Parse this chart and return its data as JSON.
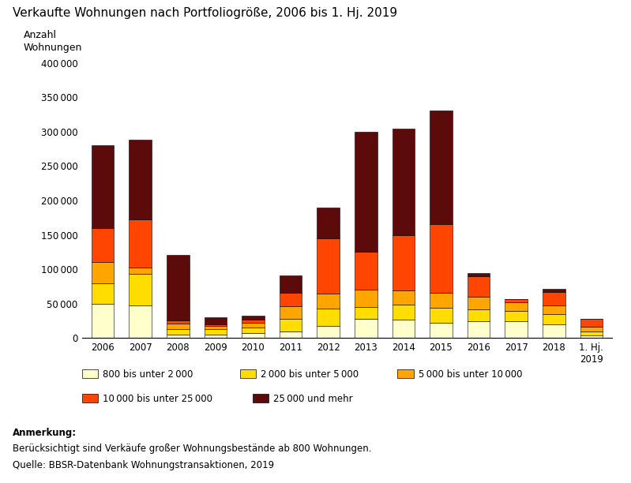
{
  "title": "Verkaufte Wohnungen nach Portfoliogröße, 2006 bis 1. Hj. 2019",
  "ylabel_line1": "Anzahl",
  "ylabel_line2": "Wohnungen",
  "categories": [
    "2006",
    "2007",
    "2008",
    "2009",
    "2010",
    "2011",
    "2012",
    "2013",
    "2014",
    "2015",
    "2016",
    "2017",
    "2018",
    "1. Hj.\n2019"
  ],
  "series_labels": [
    "800 bis unter 2 000",
    "2 000 bis unter 5 000",
    "5 000 bis unter 10 000",
    "10 000 bis unter 25 000",
    "25 000 und mehr"
  ],
  "colors": [
    "#FFFFCC",
    "#FFDD00",
    "#FFA500",
    "#FF4500",
    "#5C0A0A"
  ],
  "data": {
    "800_2000": [
      50000,
      48000,
      5000,
      5000,
      7000,
      10000,
      18000,
      28000,
      27000,
      22000,
      24000,
      25000,
      20000,
      4000
    ],
    "2000_5000": [
      30000,
      45000,
      8000,
      8000,
      8000,
      18000,
      25000,
      17000,
      22000,
      22000,
      18000,
      15000,
      15000,
      6000
    ],
    "5000_10000": [
      30000,
      10000,
      8000,
      5000,
      7000,
      18000,
      22000,
      25000,
      20000,
      22000,
      18000,
      12000,
      12000,
      6000
    ],
    "10000_25000": [
      50000,
      70000,
      5000,
      2000,
      5000,
      20000,
      80000,
      55000,
      80000,
      100000,
      30000,
      5000,
      20000,
      12000
    ],
    "25000_mehr": [
      120000,
      115000,
      95000,
      10000,
      5000,
      25000,
      45000,
      175000,
      155000,
      165000,
      5000,
      0,
      5000,
      0
    ]
  },
  "ylim": [
    0,
    400000
  ],
  "yticks": [
    0,
    50000,
    100000,
    150000,
    200000,
    250000,
    300000,
    350000,
    400000
  ],
  "ytick_labels": [
    "0",
    "50 000",
    "100 000",
    "150 000",
    "200 000",
    "250 000",
    "300 000",
    "350 000",
    "400 000"
  ],
  "annotation_title": "Anmerkung:",
  "annotation_text": "Berücksichtigt sind Verkäufe großer Wohnungsbestände ab 800 Wohnungen.",
  "source_text": "Quelle: BBSR-Datenbank Wohnungstransaktionen, 2019",
  "background_color": "#FFFFFF",
  "bar_edge_color": "#000000",
  "bar_edge_width": 0.4
}
